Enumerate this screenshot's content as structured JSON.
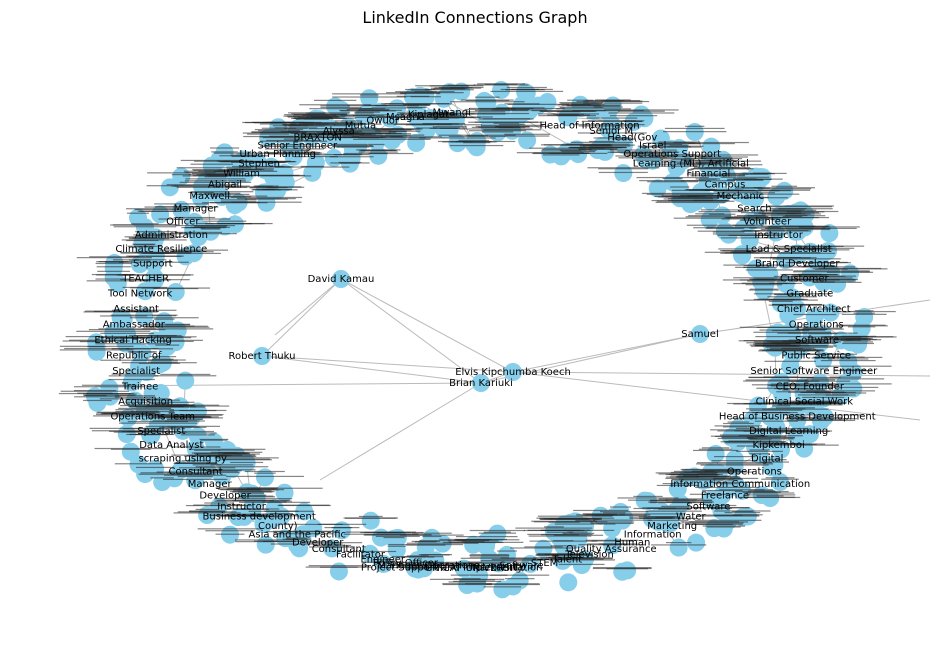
{
  "title": "LinkedIn Connections Graph",
  "colors": {
    "node": "#87ceeb",
    "edge": "#bbbbbb",
    "label": "#000000"
  },
  "nodes": [
    {
      "id": "elvis",
      "label": "Elvis Kipchumba Koech",
      "hub": true
    },
    {
      "id": "brian",
      "label": "Brian Kariuki",
      "hub": true
    },
    {
      "id": "david",
      "label": "David Kamau",
      "hub": true
    },
    {
      "id": "thuku",
      "label": "Robert Thuku",
      "hub": true
    },
    {
      "id": "samuel",
      "label": "Samuel",
      "hub": true
    },
    {
      "id": "n1",
      "label": "Head of Information"
    },
    {
      "id": "n2",
      "label": "Senior M"
    },
    {
      "id": "n3",
      "label": "Head(Gov"
    },
    {
      "id": "n4",
      "label": "Israel"
    },
    {
      "id": "n5",
      "label": "Operations Support"
    },
    {
      "id": "n6",
      "label": "Learning (ML), Artificial"
    },
    {
      "id": "n7",
      "label": "Financial"
    },
    {
      "id": "n8",
      "label": "Campus"
    },
    {
      "id": "n9",
      "label": "Mechanic"
    },
    {
      "id": "n10",
      "label": "Search"
    },
    {
      "id": "n11",
      "label": "Volunteer"
    },
    {
      "id": "n12",
      "label": "Instructor"
    },
    {
      "id": "n13",
      "label": "Lead & Specialist"
    },
    {
      "id": "n14",
      "label": "Brand Developer"
    },
    {
      "id": "n15",
      "label": "Customer"
    },
    {
      "id": "n16",
      "label": "Graduate"
    },
    {
      "id": "n17",
      "label": "Chief Architect"
    },
    {
      "id": "n18",
      "label": "Operations"
    },
    {
      "id": "n19",
      "label": "Software"
    },
    {
      "id": "n20",
      "label": "Public Service"
    },
    {
      "id": "n21",
      "label": "Senior Software Engineer"
    },
    {
      "id": "n22",
      "label": "CEO, Founder"
    },
    {
      "id": "n23",
      "label": "Clinical Social Work"
    },
    {
      "id": "n24",
      "label": "Head of Business Development"
    },
    {
      "id": "n25",
      "label": "Digital Learning"
    },
    {
      "id": "n26",
      "label": "Kipkemboi"
    },
    {
      "id": "n27",
      "label": "Digital"
    },
    {
      "id": "n28",
      "label": "Operations"
    },
    {
      "id": "n29",
      "label": "Information Communication"
    },
    {
      "id": "n30",
      "label": "Freelance"
    },
    {
      "id": "n31",
      "label": "Software"
    },
    {
      "id": "n32",
      "label": "Water"
    },
    {
      "id": "n33",
      "label": "Marketing"
    },
    {
      "id": "n34",
      "label": "Information"
    },
    {
      "id": "n35",
      "label": "Human"
    },
    {
      "id": "n36",
      "label": "Quality Assurance"
    },
    {
      "id": "n37",
      "label": "Television"
    },
    {
      "id": "n38",
      "label": "Talent"
    },
    {
      "id": "n39",
      "label": "STEM"
    },
    {
      "id": "n40",
      "label": "Software"
    },
    {
      "id": "n41",
      "label": "Marketing,"
    },
    {
      "id": "n42",
      "label": "UNICAF UNIVERSITY"
    },
    {
      "id": "n43",
      "label": "Project Support and Implementation"
    },
    {
      "id": "n44",
      "label": "Manager Operations"
    },
    {
      "id": "n45",
      "label": "Policy Officer"
    },
    {
      "id": "n46",
      "label": "Engineer"
    },
    {
      "id": "n47",
      "label": "Facilitator"
    },
    {
      "id": "n48",
      "label": "Consultant"
    },
    {
      "id": "n49",
      "label": "Developer"
    },
    {
      "id": "n50",
      "label": "Asia and the Pacific"
    },
    {
      "id": "n51",
      "label": "County)"
    },
    {
      "id": "n52",
      "label": "Business development"
    },
    {
      "id": "n53",
      "label": "Instructor"
    },
    {
      "id": "n54",
      "label": "Developer"
    },
    {
      "id": "n55",
      "label": "Manager"
    },
    {
      "id": "n56",
      "label": "Consultant"
    },
    {
      "id": "n57",
      "label": "scraping using py"
    },
    {
      "id": "n58",
      "label": "Data Analyst"
    },
    {
      "id": "n59",
      "label": "Specialist"
    },
    {
      "id": "n60",
      "label": "Operations Team"
    },
    {
      "id": "n61",
      "label": "Acquisition"
    },
    {
      "id": "n62",
      "label": "Trainee"
    },
    {
      "id": "n63",
      "label": "Specialist"
    },
    {
      "id": "n64",
      "label": "Republic of"
    },
    {
      "id": "n65",
      "label": "Ethical Hacking"
    },
    {
      "id": "n66",
      "label": "Ambassador"
    },
    {
      "id": "n67",
      "label": "Assistant"
    },
    {
      "id": "n68",
      "label": "Tool Network"
    },
    {
      "id": "n69",
      "label": "TEACHER"
    },
    {
      "id": "n70",
      "label": "Support"
    },
    {
      "id": "n71",
      "label": "Climate Resilience"
    },
    {
      "id": "n72",
      "label": "Administration"
    },
    {
      "id": "n73",
      "label": "Officer"
    },
    {
      "id": "n74",
      "label": "Manager"
    },
    {
      "id": "n75",
      "label": "Maxwell"
    },
    {
      "id": "n76",
      "label": "Abigail"
    },
    {
      "id": "n77",
      "label": "William"
    },
    {
      "id": "n78",
      "label": "Stephen"
    },
    {
      "id": "n79",
      "label": "Urban Planning"
    },
    {
      "id": "n80",
      "label": "Senior Engineer"
    },
    {
      "id": "n81",
      "label": "BRAXTON"
    },
    {
      "id": "n82",
      "label": "Alyssa"
    },
    {
      "id": "n83",
      "label": "Mutua"
    },
    {
      "id": "n84",
      "label": "Owuor"
    },
    {
      "id": "n85",
      "label": "Msagha"
    },
    {
      "id": "n86",
      "label": "Kiplagat"
    },
    {
      "id": "n87",
      "label": "Mwangi"
    }
  ]
}
